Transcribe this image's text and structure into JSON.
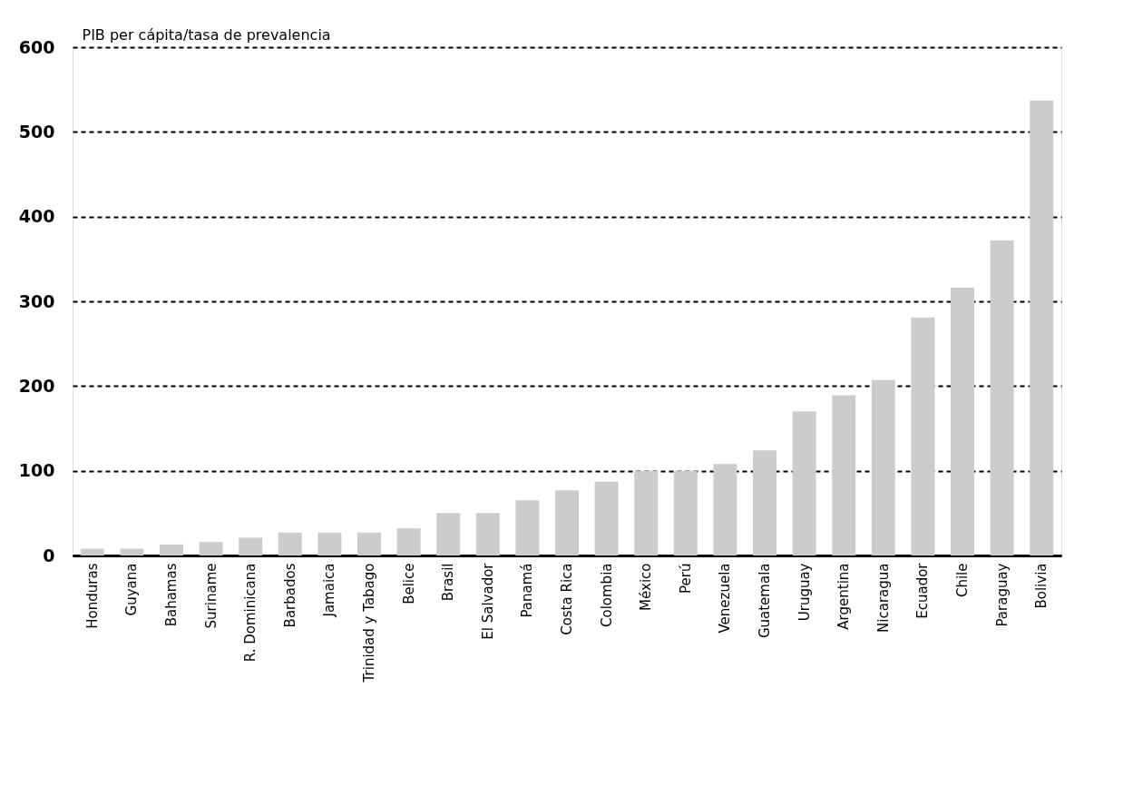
{
  "chart_data": {
    "type": "bar",
    "ylabel": "PIB per cápita/tasa de prevalencia",
    "categories": [
      "Honduras",
      "Guyana",
      "Bahamas",
      "Suriname",
      "R. Dominicana",
      "Barbados",
      "Jamaica",
      "Trinidad y Tabago",
      "Belice",
      "Brasil",
      "El Salvador",
      "Panamá",
      "Costa Rica",
      "Colombia",
      "México",
      "Perú",
      "Venezuela",
      "Guatemala",
      "Uruguay",
      "Argentina",
      "Nicaragua",
      "Ecuador",
      "Chile",
      "Paraguay",
      "Bolivia"
    ],
    "values": [
      8,
      8,
      13,
      16,
      21,
      27,
      27,
      27,
      32,
      50,
      50,
      65,
      77,
      87,
      100,
      100,
      108,
      124,
      170,
      189,
      207,
      281,
      316,
      372,
      537
    ],
    "color": "#cccccc",
    "ylim": [
      0,
      600
    ],
    "yticks": [
      0,
      100,
      200,
      300,
      400,
      500,
      600
    ],
    "grid": "y"
  }
}
